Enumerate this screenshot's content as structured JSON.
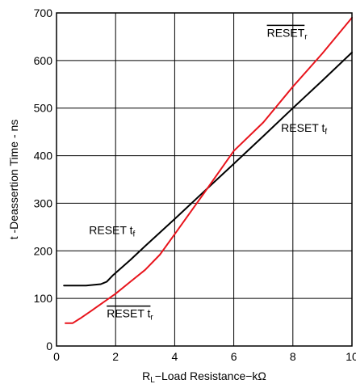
{
  "chart_data": {
    "type": "line",
    "title": "",
    "xlabel": {
      "main": "R",
      "sub": "L",
      "rest": "−Load Resistance−kΩ"
    },
    "ylabel": "t -Deassertion Time - ns",
    "xlim": [
      0,
      10
    ],
    "ylim": [
      0,
      700
    ],
    "xticks": [
      "0",
      "2",
      "4",
      "6",
      "8",
      "10"
    ],
    "yticks": [
      "0",
      "100",
      "200",
      "300",
      "400",
      "500",
      "600",
      "700"
    ],
    "grid": true,
    "series": [
      {
        "color": "#000000",
        "x": [
          0.25,
          0.5,
          1.0,
          1.5,
          1.7,
          1.9,
          2.5,
          3.0,
          4.0,
          5.0,
          6.0,
          7.0,
          8.0,
          9.0,
          10.0
        ],
        "y": [
          127,
          127,
          127,
          130,
          135,
          148,
          181,
          210,
          267,
          325,
          383,
          441,
          500,
          558,
          617
        ]
      },
      {
        "color": "#e8141c",
        "x": [
          0.3,
          0.55,
          0.8,
          1.2,
          2.0,
          2.5,
          3.0,
          3.5,
          4.0,
          5.0,
          6.0,
          7.0,
          8.0,
          9.0,
          10.0
        ],
        "y": [
          48,
          48,
          58,
          75,
          110,
          135,
          160,
          192,
          235,
          322,
          410,
          470,
          545,
          615,
          690
        ]
      }
    ],
    "annotations": [
      {
        "base": "RESET",
        "sub": "r",
        "overline": true,
        "x": 7.12,
        "y": 650
      },
      {
        "base": "RESET t",
        "sub": "f",
        "overline": false,
        "x": 7.6,
        "y": 450
      },
      {
        "base": "RESET t",
        "sub": "f",
        "overline": false,
        "x": 1.1,
        "y": 235
      },
      {
        "base": "RESET t",
        "sub": "r",
        "overline": true,
        "x": 1.7,
        "y": 60
      }
    ]
  }
}
